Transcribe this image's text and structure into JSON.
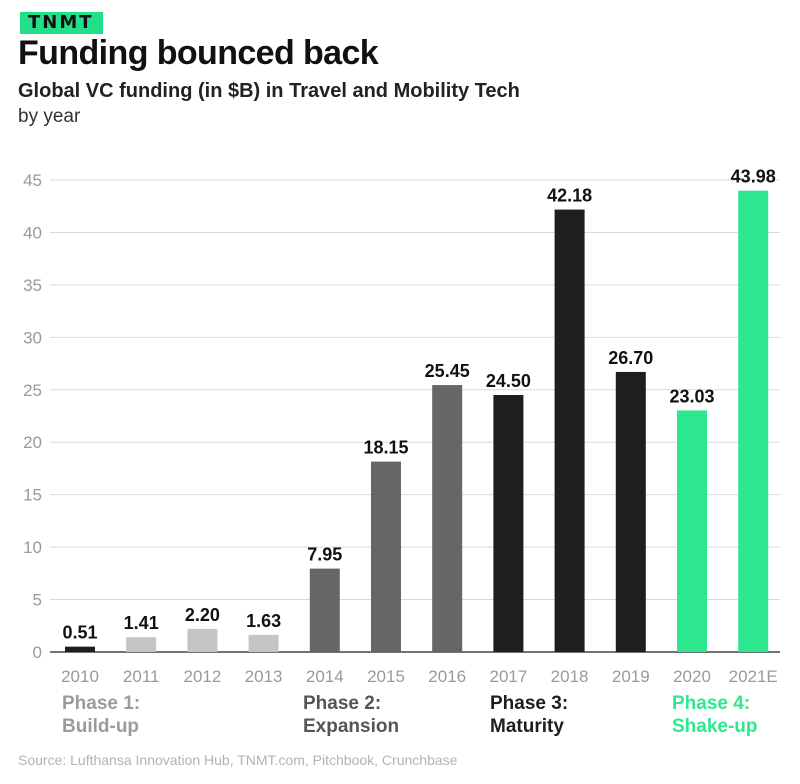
{
  "brand": {
    "label": "TNMT"
  },
  "header": {
    "title": "Funding bounced back",
    "subtitle": "Global VC funding (in $B) in Travel and Mobility Tech",
    "subtitle2": "by year"
  },
  "phases": [
    {
      "line1": "Phase 1:",
      "line2": "Build-up",
      "color": "#9b9b9b"
    },
    {
      "line1": "Phase 2:",
      "line2": "Expansion",
      "color": "#555555"
    },
    {
      "line1": "Phase 3:",
      "line2": "Maturity",
      "color": "#1e1e1e"
    },
    {
      "line1": "Phase 4:",
      "line2": "Shake-up",
      "color": "#2ee88f"
    }
  ],
  "source": "Source: Lufthansa Innovation Hub, TNMT.com, Pitchbook, Crunchbase",
  "chart_data": {
    "type": "bar",
    "title": "Funding bounced back",
    "categories": [
      "2010",
      "2011",
      "2012",
      "2013",
      "2014",
      "2015",
      "2016",
      "2017",
      "2018",
      "2019",
      "2020",
      "2021E"
    ],
    "values": [
      0.51,
      1.41,
      2.2,
      1.63,
      7.95,
      18.15,
      25.45,
      24.5,
      42.18,
      26.7,
      23.03,
      43.98
    ],
    "labels": [
      "0.51",
      "1.41",
      "2.20",
      "1.63",
      "7.95",
      "18.15",
      "25.45",
      "24.50",
      "42.18",
      "26.70",
      "23.03",
      "43.98"
    ],
    "phase_index": [
      0,
      0,
      0,
      0,
      1,
      1,
      1,
      2,
      2,
      2,
      3,
      3
    ],
    "bar_colors": {
      "0": [
        "#1e1e1e",
        "#c4c4c4",
        "#c4c4c4",
        "#c4c4c4"
      ],
      "1": "#666666",
      "2": "#1e1e1e",
      "3": "#2ee88f"
    },
    "ylim": [
      0,
      45
    ],
    "yticks": [
      0,
      5,
      10,
      15,
      20,
      25,
      30,
      35,
      40,
      45
    ],
    "grid": true,
    "xlabel": "",
    "ylabel": ""
  }
}
